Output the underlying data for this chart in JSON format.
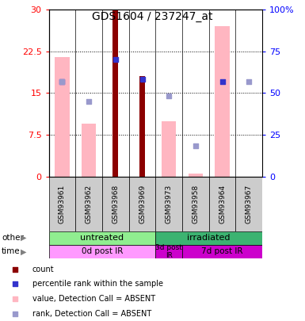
{
  "title": "GDS1604 / 237247_at",
  "samples": [
    "GSM93961",
    "GSM93962",
    "GSM93968",
    "GSM93969",
    "GSM93973",
    "GSM93958",
    "GSM93964",
    "GSM93967"
  ],
  "count_values": [
    0,
    0,
    30,
    18,
    0,
    0,
    0,
    0
  ],
  "pink_values": [
    21.5,
    9.5,
    0,
    0,
    10,
    0.5,
    27,
    0
  ],
  "blue_square_values": [
    17,
    0,
    21,
    17.5,
    0,
    0,
    17,
    0
  ],
  "light_blue_values": [
    17,
    13.5,
    0,
    0,
    14.5,
    5.5,
    0,
    17
  ],
  "count_color": "#8B0000",
  "pink_color": "#FFB6C1",
  "blue_color": "#3333CC",
  "light_blue_color": "#9999CC",
  "ylim_left": [
    0,
    30
  ],
  "ylim_right": [
    0,
    100
  ],
  "yticks_left": [
    0,
    7.5,
    15,
    22.5,
    30
  ],
  "ytick_labels_left": [
    "0",
    "7.5",
    "15",
    "22.5",
    "30"
  ],
  "yticks_right": [
    0,
    25,
    50,
    75,
    100
  ],
  "ytick_labels_right": [
    "0",
    "25",
    "50",
    "75",
    "100%"
  ],
  "dotted_lines": [
    7.5,
    15,
    22.5
  ],
  "other_groups": [
    {
      "label": "untreated",
      "start": 0,
      "end": 4,
      "color": "#90EE90"
    },
    {
      "label": "irradiated",
      "start": 4,
      "end": 8,
      "color": "#3CB371"
    }
  ],
  "time_groups": [
    {
      "label": "0d post IR",
      "start": 0,
      "end": 4,
      "color": "#FF99FF"
    },
    {
      "label": "3d post\nIR",
      "start": 4,
      "end": 5,
      "color": "#CC00CC"
    },
    {
      "label": "7d post IR",
      "start": 5,
      "end": 8,
      "color": "#CC00CC"
    }
  ],
  "legend_items": [
    {
      "color": "#8B0000",
      "label": "count",
      "marker": "s"
    },
    {
      "color": "#3333CC",
      "label": "percentile rank within the sample",
      "marker": "s"
    },
    {
      "color": "#FFB6C1",
      "label": "value, Detection Call = ABSENT",
      "marker": "s"
    },
    {
      "color": "#9999CC",
      "label": "rank, Detection Call = ABSENT",
      "marker": "s"
    }
  ]
}
